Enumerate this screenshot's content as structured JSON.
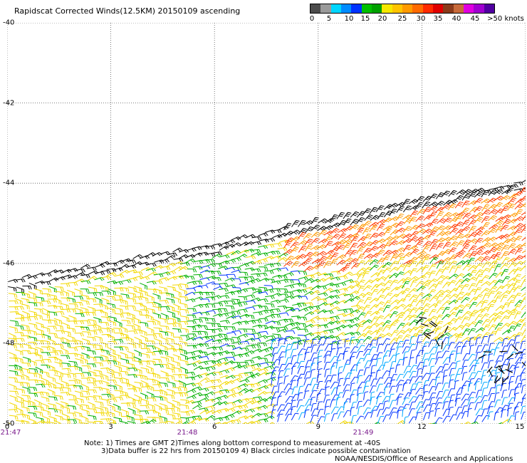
{
  "title": "Rapidscat Corrected Winds(12.5KM) 20150109 ascending",
  "colorbar": {
    "colors": [
      "#4c4c4c",
      "#9a9a9a",
      "#00d6ff",
      "#008cff",
      "#0033ff",
      "#00c000",
      "#00a000",
      "#f6e800",
      "#ffc400",
      "#ff9a00",
      "#ff6a00",
      "#ff2a00",
      "#e00000",
      "#8b3a1a",
      "#c86a3a",
      "#e000e0",
      "#a000d0",
      "#5000a0"
    ],
    "labels": [
      "0",
      "5",
      "10",
      "15",
      "20",
      "25",
      "30",
      "35",
      "40",
      "45",
      ">50 knots"
    ]
  },
  "axes": {
    "lat_labels": [
      "-40",
      "-42",
      "-44",
      "-46",
      "-48",
      "-50"
    ],
    "lon_labels": [
      "0",
      "3",
      "6",
      "9",
      "12",
      "15"
    ],
    "time_labels": [
      "21:47",
      "21:48",
      "21:49"
    ]
  },
  "notes": [
    "Note: 1) Times are GMT 2)Times along bottom correspond to measurement at -40S",
    "3)Data buffer is 22 hrs from 20150109 4) Black circles indicate possible contamination",
    "NOAA/NESDIS/Office of Research and Applications"
  ],
  "map_data": {
    "lat_range": [
      -40,
      -50
    ],
    "lon_range": [
      0,
      15
    ],
    "units": "knots",
    "swath_north_edge": [
      [
        0,
        -46.4
      ],
      [
        2,
        -46.1
      ],
      [
        4,
        -45.8
      ],
      [
        6,
        -45.5
      ],
      [
        8,
        -45.1
      ],
      [
        10,
        -44.8
      ],
      [
        12,
        -44.4
      ],
      [
        14,
        -44.1
      ],
      [
        15,
        -43.9
      ]
    ],
    "speed_regions": [
      {
        "lon": [
          0,
          5
        ],
        "lat": [
          -46.5,
          -50
        ],
        "speed": 22,
        "dir": 100
      },
      {
        "lon": [
          5,
          8.5
        ],
        "lat": [
          -46,
          -48.5
        ],
        "speed": 17,
        "dir": 80
      },
      {
        "lon": [
          7.5,
          10
        ],
        "lat": [
          -48,
          -50
        ],
        "speed": 12,
        "dir": 20
      },
      {
        "lon": [
          9.5,
          15
        ],
        "lat": [
          -48,
          -50
        ],
        "speed": 11,
        "dir": 20
      },
      {
        "lon": [
          8,
          15
        ],
        "lat": [
          -44.2,
          -46.2
        ],
        "speed": 30,
        "dir": 45
      },
      {
        "lon": [
          10,
          15
        ],
        "lat": [
          -46,
          -48
        ],
        "speed": 22,
        "dir": 40
      }
    ],
    "contamination_lines": "black barbs along northern swath edge and near lon 12, lat -47.5 and lon 14, lat -48.5"
  }
}
